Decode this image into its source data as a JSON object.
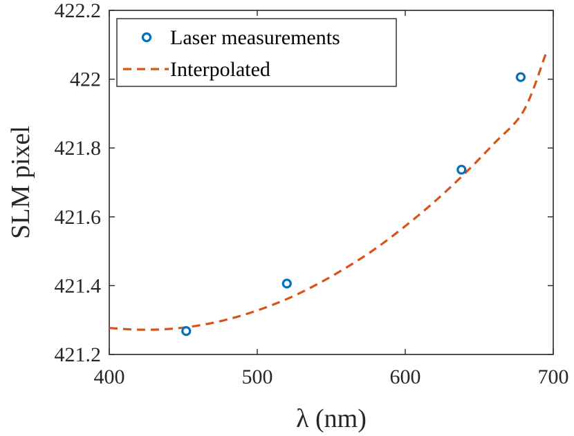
{
  "chart_data": {
    "type": "line",
    "title": "",
    "xlabel": "λ (nm)",
    "ylabel": "SLM pixel",
    "xlim": [
      400,
      700
    ],
    "ylim": [
      421.2,
      422.2
    ],
    "xticks": [
      400,
      500,
      600,
      700
    ],
    "yticks": [
      421.2,
      421.4,
      421.6,
      421.8,
      422.0,
      422.2
    ],
    "xtick_labels": [
      "400",
      "500",
      "600",
      "700"
    ],
    "ytick_labels": [
      "421.2",
      "421.4",
      "421.6",
      "421.8",
      "422",
      "422.2"
    ],
    "grid": false,
    "legend_position": "top-left",
    "series": [
      {
        "name": "Laser measurements",
        "kind": "markers",
        "marker": "circle",
        "color": "#0072BD",
        "x": [
          452,
          520,
          638,
          678
        ],
        "y": [
          421.268,
          421.406,
          421.737,
          422.006
        ]
      },
      {
        "name": "Interpolated",
        "kind": "line",
        "linestyle": "dashed",
        "color": "#D95319",
        "x": [
          400,
          420,
          440,
          460,
          480,
          500,
          520,
          540,
          560,
          580,
          600,
          620,
          640,
          660,
          680,
          695
        ],
        "y": [
          421.277,
          421.272,
          421.274,
          421.284,
          421.302,
          421.328,
          421.361,
          421.403,
          421.452,
          421.508,
          421.573,
          421.645,
          421.725,
          421.813,
          421.908,
          422.074
        ]
      }
    ]
  }
}
